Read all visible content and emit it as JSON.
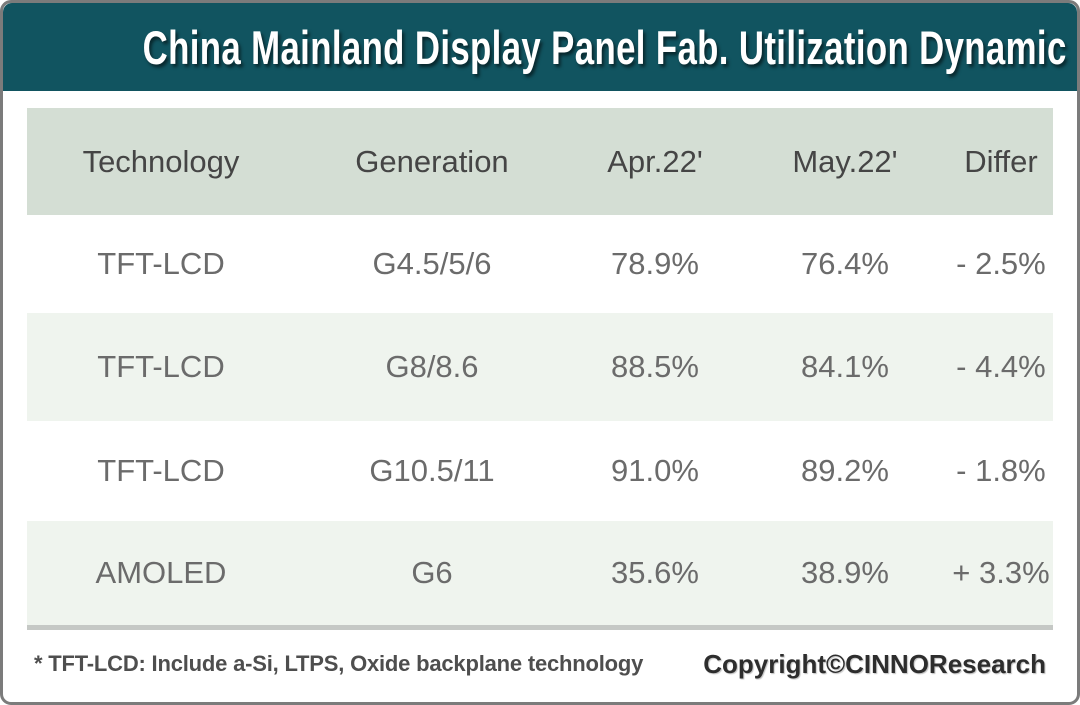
{
  "chart_data": {
    "type": "table",
    "title": "China Mainland Display Panel Fab. Utilization Dynamic",
    "columns": [
      "Technology",
      "Generation",
      "Apr.22'",
      "May.22'",
      "Differ"
    ],
    "rows": [
      [
        "TFT-LCD",
        "G4.5/5/6",
        "78.9%",
        "76.4%",
        "- 2.5%"
      ],
      [
        "TFT-LCD",
        "G8/8.6",
        "88.5%",
        "84.1%",
        "- 4.4%"
      ],
      [
        "TFT-LCD",
        "G10.5/11",
        "91.0%",
        "89.2%",
        "- 1.8%"
      ],
      [
        "AMOLED",
        "G6",
        "35.6%",
        "38.9%",
        "+ 3.3%"
      ]
    ],
    "values_numeric": {
      "apr_22_pct": [
        78.9,
        88.5,
        91.0,
        35.6
      ],
      "may_22_pct": [
        76.4,
        84.1,
        89.2,
        38.9
      ],
      "differ_pct": [
        -2.5,
        -4.4,
        -1.8,
        3.3
      ]
    },
    "layout_hints": {
      "header_fill": "#d4ded4",
      "alt_row_fill": "#eff4ee",
      "grid": "off"
    }
  },
  "footer": {
    "note": "* TFT-LCD: Include a-Si, LTPS, Oxide backplane technology",
    "copyright": "Copyright©CINNOResearch"
  },
  "colors": {
    "banner_teal": "#115460",
    "banner_text": "#ffffff",
    "header_row_green": "#d4ded4",
    "alt_row_green": "#eff4ee",
    "body_text_gray": "#6b6b6b",
    "header_text_gray": "#454545",
    "frame_border_gray": "#7b7b7b",
    "table_bottom_strip": "#c5c8c5"
  }
}
